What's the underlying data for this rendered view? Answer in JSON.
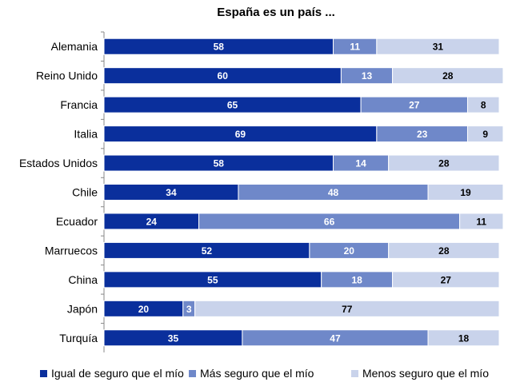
{
  "chart_data": {
    "type": "bar",
    "orientation": "horizontal",
    "stacked": true,
    "title": "España es un país ...",
    "categories": [
      "Alemania",
      "Reino Unido",
      "Francia",
      "Italia",
      "Estados Unidos",
      "Chile",
      "Ecuador",
      "Marruecos",
      "China",
      "Japón",
      "Turquía"
    ],
    "series": [
      {
        "name": "Igual de seguro que el mío",
        "color": "#0a2f9c",
        "label_color": "#ffffff",
        "values": [
          58,
          60,
          65,
          69,
          58,
          34,
          24,
          52,
          55,
          20,
          35
        ]
      },
      {
        "name": "Más seguro que el mío",
        "color": "#6f88c9",
        "label_color": "#ffffff",
        "values": [
          11,
          13,
          27,
          23,
          14,
          48,
          66,
          20,
          18,
          3,
          47
        ]
      },
      {
        "name": "Menos seguro que el mío",
        "color": "#c9d3eb",
        "label_color": "#000000",
        "values": [
          31,
          28,
          8,
          9,
          28,
          19,
          11,
          28,
          27,
          77,
          18
        ]
      }
    ],
    "xlim": [
      0,
      100
    ],
    "grid": false,
    "legend_position": "bottom",
    "data_labels": true
  }
}
